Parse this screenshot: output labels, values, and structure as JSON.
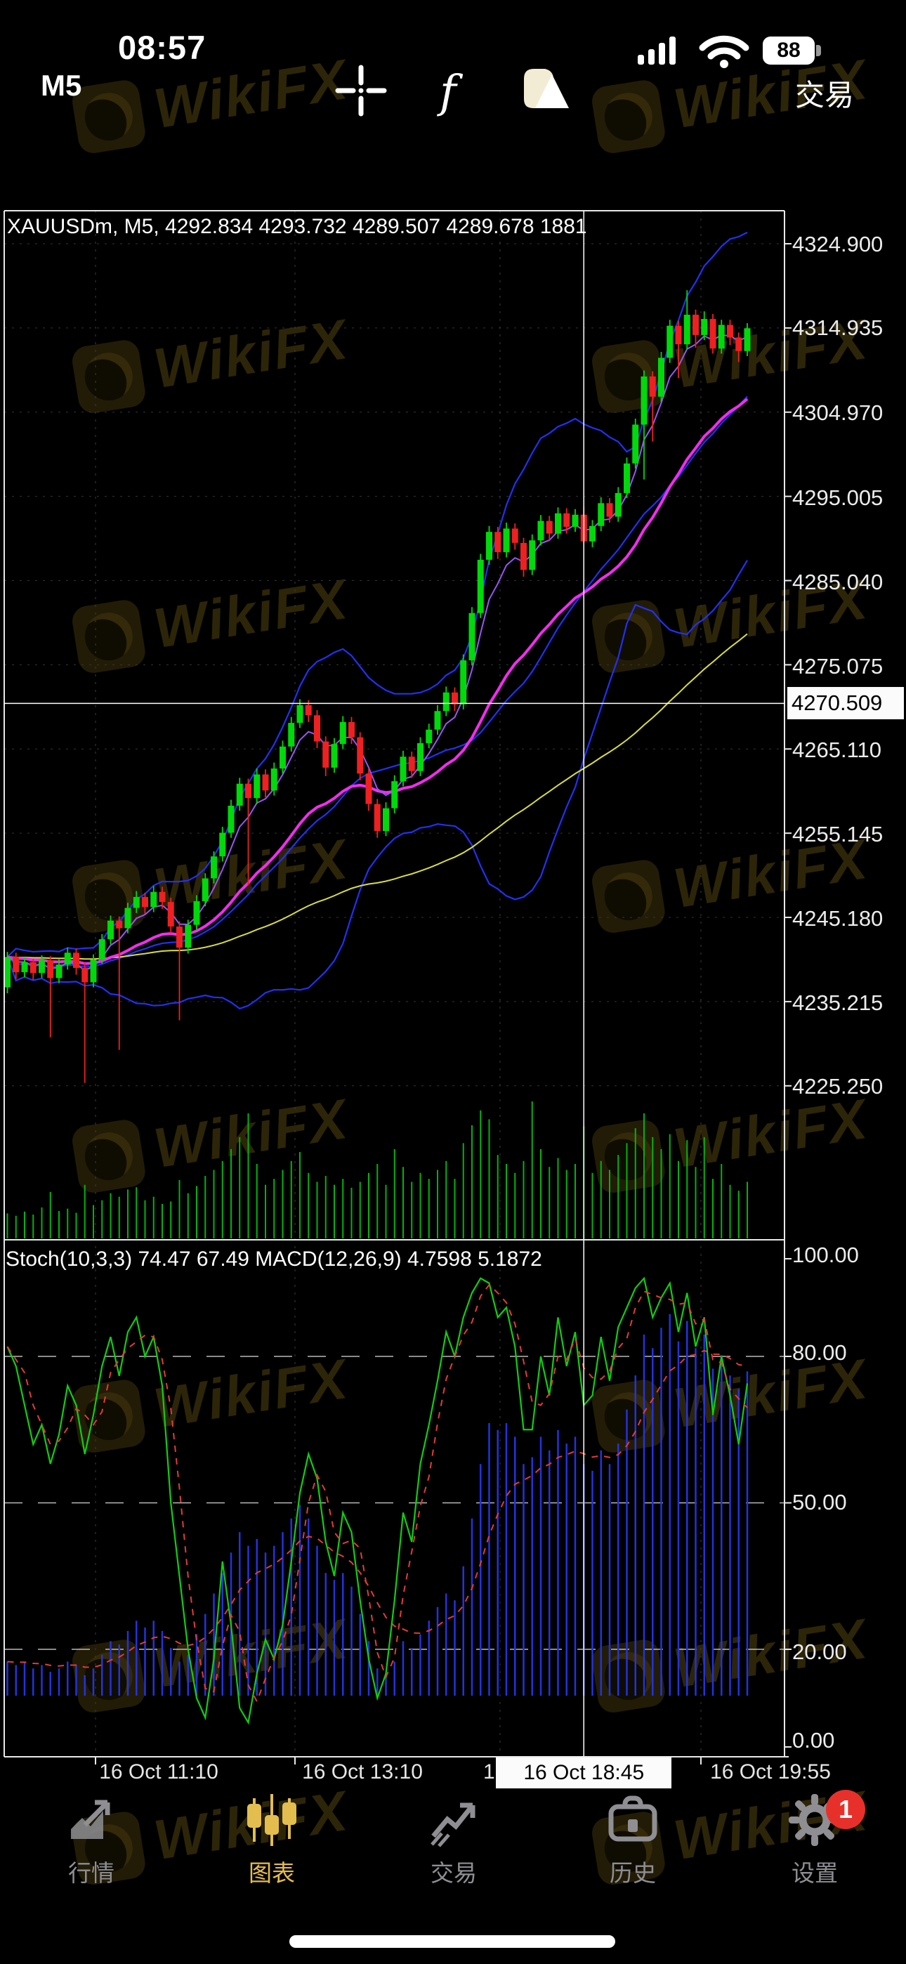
{
  "status_bar": {
    "time": "08:57",
    "battery_percent": "88"
  },
  "toolbar": {
    "timeframe": "M5",
    "trade_label": "交易",
    "icons": [
      "crosshair-icon",
      "function-icon",
      "objects-icon"
    ]
  },
  "watermark": {
    "text": "WikiFX"
  },
  "nav": {
    "items": [
      {
        "label": "行情"
      },
      {
        "label": "图表"
      },
      {
        "label": "交易"
      },
      {
        "label": "历史"
      },
      {
        "label": "设置",
        "badge": "1"
      }
    ],
    "active_index": 1
  },
  "chart_data": {
    "type": "candlestick+indicators",
    "symbol": "XAUUSDm",
    "timeframe": "M5",
    "header": "XAUUSDm, M5, 4292.834 4293.732 4289.507 4289.678 1881",
    "selected_bar": {
      "open": 4292.834,
      "high": 4293.732,
      "low": 4289.507,
      "close": 4289.678,
      "volume": 1881
    },
    "indicator_header": "Stoch(10,3,3) 74.47 67.49 MACD(12,26,9) 4.7598 5.1872",
    "stoch_settings": "Stoch(10,3,3)",
    "stoch_values": [
      74.47,
      67.49
    ],
    "macd_settings": "MACD(12,26,9)",
    "macd_values": [
      4.7598,
      5.1872
    ],
    "price_axis": [
      "4324.900",
      "4314.935",
      "4304.970",
      "4295.005",
      "4285.040",
      "4275.075",
      "4265.110",
      "4255.145",
      "4245.180",
      "4235.215",
      "4225.250"
    ],
    "price_axis_values": [
      4324.9,
      4314.935,
      4304.97,
      4295.005,
      4285.04,
      4275.075,
      4265.11,
      4255.145,
      4245.18,
      4235.215,
      4225.25
    ],
    "indicator_axis": [
      "100.00",
      "80.00",
      "50.00",
      "20.00",
      "0.00"
    ],
    "indicator_axis_values": [
      100,
      80,
      50,
      20,
      0
    ],
    "indicator_grid_levels": [
      80,
      50,
      20
    ],
    "time_axis": {
      "labels": [
        "16 Oct 11:10",
        "16 Oct 13:10",
        "16 Oct 19:55"
      ],
      "partial": "1"
    },
    "crosshair": {
      "price_label": "4270.509",
      "price_value": 4270.509,
      "time_label": "16 Oct 18:45",
      "bar_index": 67
    },
    "legend_position": "top-left",
    "grid": true,
    "candles": [
      [
        4236.9,
        4241.1,
        4236.2,
        4240.5
      ],
      [
        4240.5,
        4241.0,
        4237.9,
        4238.7
      ],
      [
        4238.7,
        4240.4,
        4238.1,
        4239.9
      ],
      [
        4239.9,
        4240.3,
        4237.8,
        4238.6
      ],
      [
        4238.6,
        4240.7,
        4238.0,
        4240.1
      ],
      [
        4240.1,
        4240.6,
        4231.0,
        4238.0
      ],
      [
        4238.0,
        4240.2,
        4237.4,
        4239.6
      ],
      [
        4239.6,
        4241.6,
        4239.0,
        4241.0
      ],
      [
        4241.0,
        4241.5,
        4238.4,
        4239.2
      ],
      [
        4239.2,
        4239.8,
        4225.6,
        4237.5
      ],
      [
        4237.5,
        4240.8,
        4236.9,
        4240.2
      ],
      [
        4240.2,
        4243.2,
        4239.7,
        4242.6
      ],
      [
        4242.6,
        4245.4,
        4242.0,
        4244.8
      ],
      [
        4244.8,
        4245.3,
        4229.5,
        4243.9
      ],
      [
        4243.9,
        4246.9,
        4243.3,
        4246.3
      ],
      [
        4246.3,
        4248.3,
        4245.7,
        4247.6
      ],
      [
        4247.6,
        4248.1,
        4245.6,
        4246.4
      ],
      [
        4246.4,
        4248.9,
        4245.8,
        4248.2
      ],
      [
        4248.2,
        4248.8,
        4246.2,
        4247.0
      ],
      [
        4247.0,
        4247.5,
        4243.3,
        4244.1
      ],
      [
        4244.1,
        4244.7,
        4233.0,
        4241.6
      ],
      [
        4241.6,
        4244.9,
        4240.9,
        4244.3
      ],
      [
        4244.3,
        4247.8,
        4243.7,
        4247.1
      ],
      [
        4247.1,
        4250.4,
        4246.5,
        4249.8
      ],
      [
        4249.8,
        4253.0,
        4249.2,
        4252.4
      ],
      [
        4252.4,
        4255.9,
        4251.8,
        4255.2
      ],
      [
        4255.2,
        4259.1,
        4254.6,
        4258.4
      ],
      [
        4258.4,
        4261.7,
        4257.8,
        4261.0
      ],
      [
        4261.0,
        4261.6,
        4249.0,
        4259.3
      ],
      [
        4259.3,
        4262.8,
        4258.6,
        4262.1
      ],
      [
        4262.1,
        4262.7,
        4259.4,
        4260.2
      ],
      [
        4260.2,
        4263.5,
        4259.6,
        4262.8
      ],
      [
        4262.8,
        4266.1,
        4262.2,
        4265.4
      ],
      [
        4265.4,
        4268.9,
        4264.8,
        4268.2
      ],
      [
        4268.2,
        4271.0,
        4267.6,
        4270.3
      ],
      [
        4270.3,
        4270.9,
        4268.3,
        4269.1
      ],
      [
        4269.1,
        4269.7,
        4265.2,
        4266.0
      ],
      [
        4266.0,
        4266.6,
        4261.9,
        4262.9
      ],
      [
        4262.9,
        4266.4,
        4262.3,
        4265.7
      ],
      [
        4265.7,
        4269.0,
        4265.1,
        4268.3
      ],
      [
        4268.3,
        4268.9,
        4265.7,
        4266.5
      ],
      [
        4266.5,
        4267.1,
        4261.4,
        4262.2
      ],
      [
        4262.2,
        4262.8,
        4257.8,
        4258.6
      ],
      [
        4258.6,
        4259.2,
        4254.6,
        4255.4
      ],
      [
        4255.4,
        4258.8,
        4254.8,
        4258.1
      ],
      [
        4258.1,
        4262.0,
        4257.5,
        4261.3
      ],
      [
        4261.3,
        4264.9,
        4260.7,
        4264.2
      ],
      [
        4264.2,
        4264.8,
        4261.7,
        4262.5
      ],
      [
        4262.5,
        4266.5,
        4261.9,
        4265.8
      ],
      [
        4265.8,
        4268.1,
        4265.2,
        4267.4
      ],
      [
        4267.4,
        4270.3,
        4266.8,
        4269.6
      ],
      [
        4269.6,
        4272.5,
        4269.0,
        4271.8
      ],
      [
        4271.8,
        4272.4,
        4269.6,
        4270.4
      ],
      [
        4270.4,
        4276.3,
        4269.8,
        4275.6
      ],
      [
        4275.6,
        4281.9,
        4275.0,
        4281.2
      ],
      [
        4281.2,
        4288.2,
        4280.6,
        4287.5
      ],
      [
        4287.5,
        4291.5,
        4286.9,
        4290.8
      ],
      [
        4290.8,
        4291.4,
        4287.6,
        4288.4
      ],
      [
        4288.4,
        4291.9,
        4287.8,
        4291.2
      ],
      [
        4291.2,
        4291.8,
        4288.7,
        4289.5
      ],
      [
        4289.5,
        4290.1,
        4285.5,
        4286.3
      ],
      [
        4286.3,
        4290.5,
        4285.7,
        4289.8
      ],
      [
        4289.8,
        4292.8,
        4289.2,
        4292.1
      ],
      [
        4292.1,
        4292.7,
        4289.8,
        4290.6
      ],
      [
        4290.6,
        4293.7,
        4290.0,
        4293.0
      ],
      [
        4293.0,
        4293.6,
        4290.6,
        4291.4
      ],
      [
        4291.4,
        4293.5,
        4290.8,
        4292.834
      ],
      [
        4292.834,
        4293.732,
        4289.507,
        4289.678
      ],
      [
        4289.678,
        4292.2,
        4289.0,
        4291.5
      ],
      [
        4291.5,
        4294.9,
        4290.9,
        4294.2
      ],
      [
        4294.2,
        4294.8,
        4291.9,
        4292.6
      ],
      [
        4292.6,
        4296.1,
        4292.0,
        4295.4
      ],
      [
        4295.4,
        4299.6,
        4294.8,
        4298.9
      ],
      [
        4298.9,
        4304.2,
        4298.3,
        4303.5
      ],
      [
        4303.5,
        4309.9,
        4297.0,
        4309.2
      ],
      [
        4309.2,
        4309.8,
        4301.5,
        4306.8
      ],
      [
        4306.8,
        4312.1,
        4306.2,
        4311.4
      ],
      [
        4311.4,
        4315.9,
        4310.8,
        4315.2
      ],
      [
        4315.2,
        4315.8,
        4309.0,
        4313.0
      ],
      [
        4313.0,
        4319.4,
        4312.4,
        4316.5
      ],
      [
        4316.5,
        4317.1,
        4312.6,
        4314.1
      ],
      [
        4314.1,
        4316.9,
        4313.5,
        4316.0
      ],
      [
        4316.0,
        4316.6,
        4311.9,
        4312.5
      ],
      [
        4312.5,
        4315.9,
        4311.9,
        4315.3
      ],
      [
        4315.3,
        4315.9,
        4312.9,
        4313.8
      ],
      [
        4313.8,
        4314.4,
        4310.9,
        4312.2
      ],
      [
        4312.2,
        4315.5,
        4311.6,
        4314.9
      ]
    ],
    "volume": [
      420,
      380,
      450,
      400,
      520,
      780,
      460,
      500,
      430,
      900,
      560,
      640,
      760,
      700,
      820,
      860,
      640,
      700,
      580,
      620,
      980,
      760,
      880,
      1050,
      1150,
      1300,
      1500,
      1700,
      2100,
      1250,
      900,
      1000,
      1150,
      1300,
      1450,
      1100,
      950,
      1050,
      900,
      1000,
      850,
      950,
      1100,
      1250,
      900,
      1500,
      1200,
      950,
      1100,
      1000,
      1150,
      1300,
      1000,
      1600,
      1900,
      2150,
      2000,
      1400,
      1250,
      1100,
      1300,
      2300,
      1500,
      1200,
      1350,
      1150,
      1250,
      1881,
      1100,
      1300,
      1150,
      1400,
      1600,
      1850,
      2100,
      1700,
      1500,
      1750,
      1300,
      1650,
      1200,
      1700,
      1000,
      1250,
      900,
      800,
      950
    ],
    "stoch_k": [
      82,
      78,
      70,
      62,
      66,
      58,
      64,
      74,
      70,
      60,
      68,
      78,
      84,
      76,
      85,
      88,
      80,
      84,
      74,
      50,
      35,
      20,
      10,
      6,
      18,
      38,
      25,
      8,
      5,
      15,
      22,
      18,
      25,
      38,
      52,
      60,
      55,
      42,
      35,
      48,
      44,
      30,
      18,
      10,
      15,
      30,
      48,
      42,
      58,
      66,
      75,
      85,
      80,
      88,
      93,
      96,
      95,
      88,
      90,
      82,
      65,
      65,
      80,
      72,
      88,
      78,
      85,
      70,
      72,
      84,
      75,
      86,
      90,
      94,
      96,
      88,
      92,
      95,
      85,
      93,
      82,
      88,
      68,
      80,
      72,
      62,
      74.47
    ],
    "macd": [
      0.5,
      0.45,
      0.5,
      0.4,
      0.45,
      0.35,
      0.4,
      0.5,
      0.45,
      0.3,
      0.4,
      0.6,
      0.8,
      0.75,
      0.95,
      1.1,
      1.0,
      1.1,
      0.95,
      0.7,
      0.5,
      0.6,
      0.9,
      1.2,
      1.5,
      1.8,
      2.1,
      2.4,
      2.2,
      2.3,
      2.1,
      2.2,
      2.4,
      2.6,
      2.8,
      2.6,
      2.2,
      1.8,
      1.7,
      1.8,
      1.6,
      1.2,
      0.8,
      0.4,
      0.3,
      0.5,
      0.8,
      0.7,
      0.9,
      1.1,
      1.3,
      1.5,
      1.4,
      1.9,
      2.6,
      3.4,
      4.0,
      3.9,
      4.0,
      3.8,
      3.4,
      3.5,
      3.8,
      3.6,
      3.9,
      3.7,
      3.8,
      3.4,
      3.3,
      3.6,
      3.4,
      3.7,
      4.2,
      4.7,
      5.3,
      5.1,
      5.4,
      5.6,
      5.2,
      5.5,
      5.1,
      5.3,
      4.8,
      5.0,
      4.7,
      4.5,
      4.7598
    ],
    "colors": {
      "bull": "#00d90a",
      "bear": "#ef2020",
      "bollinger": "#2230f5",
      "ema_fast": "#9a55f2",
      "ema_mid": "#f32cf0",
      "ema_slow": "#d9dd3e",
      "volume": "#00b40a",
      "stoch_main": "#0fcf0f",
      "signal": "#e23b3b",
      "macd_histogram": "#2332e0",
      "grid": "#3b3b3b",
      "axis_text": "#ececec",
      "nav_active": "#e3bd4e",
      "nav_inactive": "#8e8e93",
      "badge": "#e8302a"
    }
  }
}
